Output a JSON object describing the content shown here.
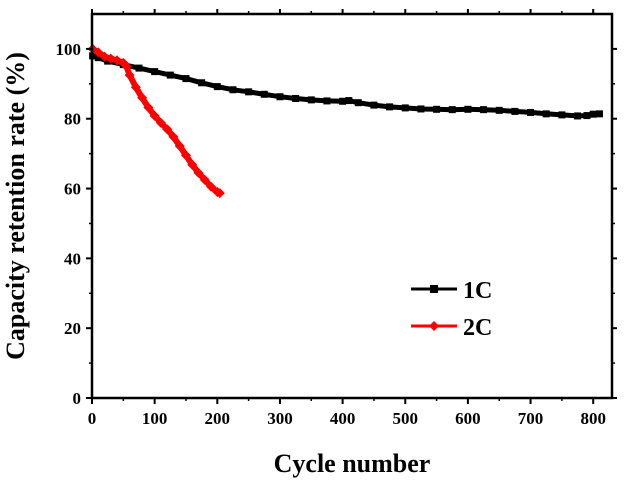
{
  "chart_data": {
    "type": "line",
    "title": "",
    "xlabel": "Cycle number",
    "ylabel": "Capacity retention rate (%)",
    "xlim": [
      0,
      830
    ],
    "ylim": [
      0,
      110
    ],
    "x_ticks": [
      0,
      100,
      200,
      300,
      400,
      500,
      600,
      700,
      800
    ],
    "y_ticks": [
      0,
      20,
      40,
      60,
      80,
      100
    ],
    "grid": false,
    "legend_position": "right",
    "series": [
      {
        "name": "1C",
        "color": "#000000",
        "marker": "square",
        "x": [
          1,
          10,
          25,
          50,
          75,
          100,
          125,
          150,
          175,
          200,
          225,
          250,
          275,
          300,
          325,
          350,
          375,
          400,
          410,
          425,
          450,
          475,
          500,
          525,
          550,
          575,
          600,
          625,
          650,
          675,
          700,
          725,
          750,
          775,
          790,
          800,
          810
        ],
        "y": [
          98.0,
          97.5,
          96.5,
          95.5,
          94.5,
          93.5,
          92.5,
          91.5,
          90.3,
          89.2,
          88.3,
          87.7,
          87.0,
          86.3,
          85.8,
          85.4,
          85.1,
          85.0,
          85.2,
          84.6,
          83.9,
          83.4,
          83.1,
          82.8,
          82.7,
          82.6,
          82.7,
          82.6,
          82.4,
          82.1,
          81.8,
          81.4,
          81.1,
          80.8,
          80.9,
          81.3,
          81.4
        ]
      },
      {
        "name": "2C",
        "color": "#ff0000",
        "marker": "diamond",
        "x": [
          1,
          10,
          20,
          30,
          40,
          50,
          55,
          60,
          70,
          80,
          90,
          100,
          110,
          120,
          130,
          140,
          150,
          160,
          170,
          180,
          190,
          200,
          204
        ],
        "y": [
          100.0,
          99.0,
          97.8,
          97.2,
          96.7,
          96.0,
          95.0,
          92.5,
          89.0,
          86.0,
          83.2,
          80.8,
          78.8,
          77.0,
          74.8,
          72.2,
          69.5,
          66.8,
          64.5,
          62.5,
          60.5,
          59.0,
          58.7
        ]
      }
    ]
  }
}
